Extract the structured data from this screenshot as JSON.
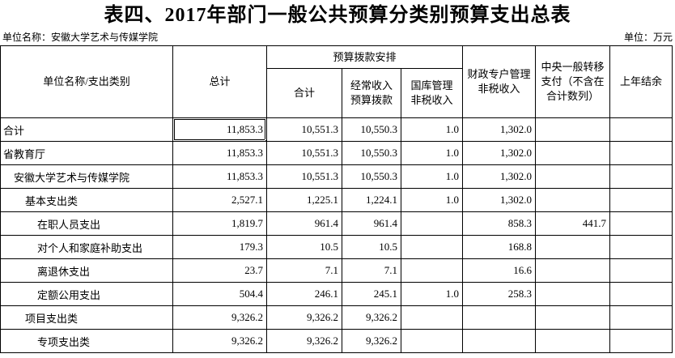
{
  "title": "表四、2017年部门一般公共预算分类别预算支出总表",
  "meta": {
    "unit_name": "单位名称：安徽大学艺术与传媒学院",
    "unit": "单位：万元"
  },
  "colors": {
    "background": "#ffffff",
    "text": "#000000",
    "grid_border": "#000000",
    "selection_border": "#000000"
  },
  "table": {
    "header": {
      "category": "单位名称/支出类别",
      "grand_total": "总计",
      "budget_group": "预算拨款安排",
      "budget_total": "合计",
      "regular_income": "经常收入\n预算拨款",
      "treasury_nontax": "国库管理\n非税收入",
      "fiscal_account_nontax": "财政专户管理\n非税收入",
      "central_transfer": "中央一般转移\n支付（不含在\n合计数列）",
      "prev_year_balance": "上年结余"
    },
    "selection": {
      "row": 0,
      "col": 0
    },
    "rows": [
      {
        "label": "合计",
        "indent": 0,
        "values": [
          "11,853.3",
          "10,551.3",
          "10,550.3",
          "1.0",
          "1,302.0",
          "",
          ""
        ]
      },
      {
        "label": "省教育厅",
        "indent": 0,
        "values": [
          "11,853.3",
          "10,551.3",
          "10,550.3",
          "1.0",
          "1,302.0",
          "",
          ""
        ]
      },
      {
        "label": "安徽大学艺术与传媒学院",
        "indent": 1,
        "values": [
          "11,853.3",
          "10,551.3",
          "10,550.3",
          "1.0",
          "1,302.0",
          "",
          ""
        ]
      },
      {
        "label": "基本支出类",
        "indent": 2,
        "values": [
          "2,527.1",
          "1,225.1",
          "1,224.1",
          "1.0",
          "1,302.0",
          "",
          ""
        ]
      },
      {
        "label": "在职人员支出",
        "indent": 3,
        "values": [
          "1,819.7",
          "961.4",
          "961.4",
          "",
          "858.3",
          "441.7",
          ""
        ]
      },
      {
        "label": "对个人和家庭补助支出",
        "indent": 3,
        "values": [
          "179.3",
          "10.5",
          "10.5",
          "",
          "168.8",
          "",
          ""
        ]
      },
      {
        "label": "离退休支出",
        "indent": 3,
        "values": [
          "23.7",
          "7.1",
          "7.1",
          "",
          "16.6",
          "",
          ""
        ]
      },
      {
        "label": "定额公用支出",
        "indent": 3,
        "values": [
          "504.4",
          "246.1",
          "245.1",
          "1.0",
          "258.3",
          "",
          ""
        ]
      },
      {
        "label": "项目支出类",
        "indent": 2,
        "values": [
          "9,326.2",
          "9,326.2",
          "9,326.2",
          "",
          "",
          "",
          ""
        ]
      },
      {
        "label": "专项支出类",
        "indent": 3,
        "values": [
          "9,326.2",
          "9,326.2",
          "9,326.2",
          "",
          "",
          "",
          ""
        ]
      }
    ]
  }
}
